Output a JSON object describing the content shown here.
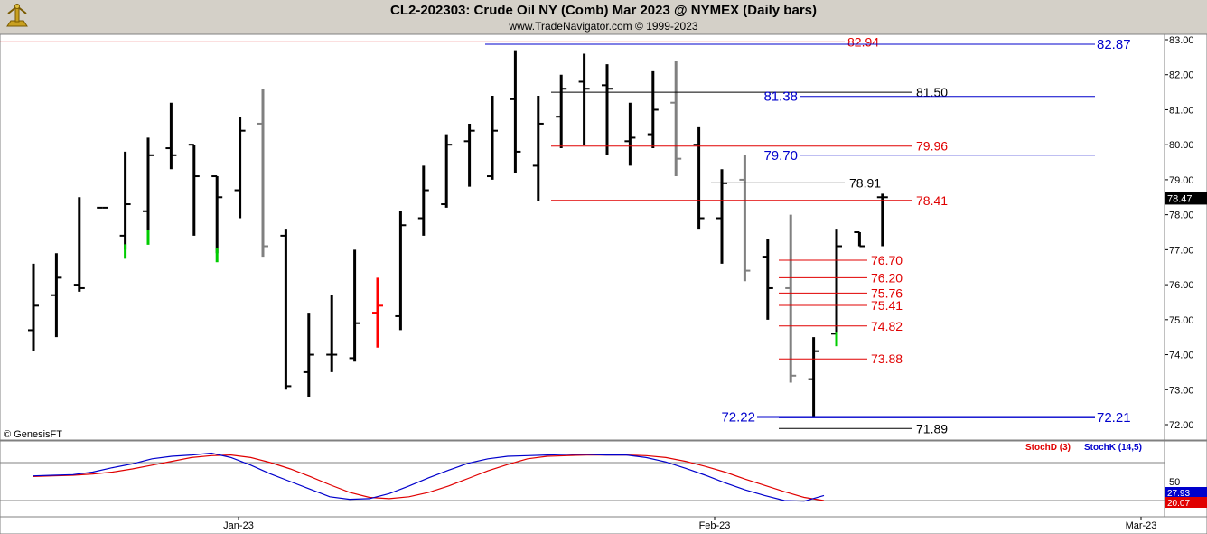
{
  "header": {
    "title": "CL2-202303:  Crude Oil NY (Comb) Mar 2023 @ NYMEX  (Daily bars)",
    "subtitle": "www.TradeNavigator.com © 1999-2023"
  },
  "colors": {
    "up": "#000000",
    "down_gray": "#808080",
    "green_tick": "#00cc00",
    "red_bar": "#ff0000",
    "red_line": "#e00000",
    "blue_line": "#0000cc",
    "stoch_d": "#e00000",
    "stoch_k": "#0000cc"
  },
  "chart_data": [
    {
      "type": "ohlc",
      "watermark": "© GenesisFT",
      "ylim": [
        71.6,
        83.3
      ],
      "y_ticks": [
        "83.00",
        "82.00",
        "81.00",
        "80.00",
        "79.00",
        "78.00",
        "77.00",
        "76.00",
        "75.00",
        "74.00",
        "73.00",
        "72.00"
      ],
      "last_price": "78.47",
      "bars": [
        {
          "o": 74.7,
          "h": 76.6,
          "l": 74.1,
          "c": 75.4,
          "color": "up"
        },
        {
          "o": 75.7,
          "h": 76.9,
          "l": 74.5,
          "c": 76.2,
          "color": "up"
        },
        {
          "o": 76.0,
          "h": 78.5,
          "l": 75.8,
          "c": 75.9,
          "color": "up"
        },
        {
          "o": 78.2,
          "h": 78.2,
          "l": 78.2,
          "c": 78.2,
          "color": "up"
        },
        {
          "o": 77.4,
          "h": 79.8,
          "l": 77.0,
          "c": 78.3,
          "color": "up"
        },
        {
          "o": 78.1,
          "h": 80.2,
          "l": 77.4,
          "c": 79.7,
          "color": "up"
        },
        {
          "o": 79.9,
          "h": 81.2,
          "l": 79.3,
          "c": 79.7,
          "color": "up"
        },
        {
          "o": 80.0,
          "h": 80.0,
          "l": 77.4,
          "c": 79.1,
          "color": "up"
        },
        {
          "o": 79.1,
          "h": 79.1,
          "l": 76.9,
          "c": 78.5,
          "color": "up"
        },
        {
          "o": 78.7,
          "h": 80.8,
          "l": 77.9,
          "c": 80.4,
          "color": "up"
        },
        {
          "o": 80.6,
          "h": 81.6,
          "l": 76.8,
          "c": 77.1,
          "color": "gray"
        },
        {
          "o": 77.4,
          "h": 77.6,
          "l": 73.0,
          "c": 73.1,
          "color": "up"
        },
        {
          "o": 73.5,
          "h": 75.2,
          "l": 72.8,
          "c": 74.0,
          "color": "up"
        },
        {
          "o": 74.0,
          "h": 75.7,
          "l": 73.5,
          "c": 74.0,
          "color": "up"
        },
        {
          "o": 73.9,
          "h": 77.0,
          "l": 73.8,
          "c": 74.9,
          "color": "up"
        },
        {
          "o": 75.2,
          "h": 76.2,
          "l": 74.2,
          "c": 75.4,
          "color": "red"
        },
        {
          "o": 75.1,
          "h": 78.1,
          "l": 74.7,
          "c": 77.7,
          "color": "up"
        },
        {
          "o": 77.9,
          "h": 79.4,
          "l": 77.4,
          "c": 78.7,
          "color": "up"
        },
        {
          "o": 78.3,
          "h": 80.3,
          "l": 78.2,
          "c": 80.0,
          "color": "up"
        },
        {
          "o": 80.1,
          "h": 80.6,
          "l": 78.8,
          "c": 80.4,
          "color": "up"
        },
        {
          "o": 79.1,
          "h": 81.4,
          "l": 79.0,
          "c": 80.4,
          "color": "up"
        },
        {
          "o": 81.3,
          "h": 82.7,
          "l": 79.2,
          "c": 79.8,
          "color": "up"
        },
        {
          "o": 79.4,
          "h": 81.4,
          "l": 78.4,
          "c": 80.6,
          "color": "up"
        },
        {
          "o": 80.8,
          "h": 82.0,
          "l": 79.9,
          "c": 81.6,
          "color": "up"
        },
        {
          "o": 81.8,
          "h": 82.6,
          "l": 80.0,
          "c": 81.6,
          "color": "up"
        },
        {
          "o": 81.7,
          "h": 82.3,
          "l": 79.7,
          "c": 81.6,
          "color": "up"
        },
        {
          "o": 80.1,
          "h": 81.2,
          "l": 79.4,
          "c": 80.2,
          "color": "up"
        },
        {
          "o": 80.3,
          "h": 82.1,
          "l": 79.9,
          "c": 81.0,
          "color": "up"
        },
        {
          "o": 81.2,
          "h": 82.4,
          "l": 79.1,
          "c": 79.6,
          "color": "gray"
        },
        {
          "o": 80.0,
          "h": 80.5,
          "l": 77.6,
          "c": 77.9,
          "color": "up"
        },
        {
          "o": 77.9,
          "h": 79.3,
          "l": 76.6,
          "c": 78.9,
          "color": "up"
        },
        {
          "o": 79.0,
          "h": 79.7,
          "l": 76.1,
          "c": 76.4,
          "color": "gray"
        },
        {
          "o": 76.8,
          "h": 77.3,
          "l": 75.0,
          "c": 75.9,
          "color": "up"
        },
        {
          "o": 75.9,
          "h": 78.0,
          "l": 73.2,
          "c": 73.4,
          "color": "gray"
        },
        {
          "o": 73.3,
          "h": 74.5,
          "l": 72.2,
          "c": 74.1,
          "color": "up"
        },
        {
          "o": 74.6,
          "h": 77.6,
          "l": 74.5,
          "c": 77.1,
          "color": "up"
        },
        {
          "o": 77.5,
          "h": 77.5,
          "l": 77.1,
          "c": 77.1,
          "color": "up"
        },
        {
          "o": 78.5,
          "h": 78.6,
          "l": 77.1,
          "c": 78.5,
          "color": "up"
        }
      ],
      "green_ticks": [
        4,
        5,
        8,
        35
      ],
      "levels": [
        {
          "value": 82.94,
          "label": "82.94",
          "color": "red",
          "side": "right"
        },
        {
          "value": 82.87,
          "label": "82.87",
          "color": "blue",
          "side": "far"
        },
        {
          "value": 81.5,
          "label": "81.50",
          "color": "black",
          "side": "right"
        },
        {
          "value": 81.38,
          "label": "81.38",
          "color": "blue",
          "side": "left"
        },
        {
          "value": 79.96,
          "label": "79.96",
          "color": "red",
          "side": "right"
        },
        {
          "value": 79.7,
          "label": "79.70",
          "color": "blue",
          "side": "left"
        },
        {
          "value": 78.91,
          "label": "78.91",
          "color": "black",
          "side": "right"
        },
        {
          "value": 78.41,
          "label": "78.41",
          "color": "red",
          "side": "right"
        },
        {
          "value": 76.7,
          "label": "76.70",
          "color": "red",
          "side": "right"
        },
        {
          "value": 76.2,
          "label": "76.20",
          "color": "red",
          "side": "right"
        },
        {
          "value": 75.76,
          "label": "75.76",
          "color": "red",
          "side": "right"
        },
        {
          "value": 75.41,
          "label": "75.41",
          "color": "red",
          "side": "right"
        },
        {
          "value": 74.82,
          "label": "74.82",
          "color": "red",
          "side": "right"
        },
        {
          "value": 73.88,
          "label": "73.88",
          "color": "red",
          "side": "right"
        },
        {
          "value": 72.22,
          "label": "72.22",
          "color": "blue",
          "side": "left"
        },
        {
          "value": 72.21,
          "label": "72.21",
          "color": "blue",
          "side": "far"
        },
        {
          "value": 71.89,
          "label": "71.89",
          "color": "black",
          "side": "right"
        }
      ]
    },
    {
      "type": "line",
      "ylim": [
        0,
        100
      ],
      "y_ticks": [
        "50"
      ],
      "legend": [
        {
          "name": "StochD (3)",
          "color": "#e00000"
        },
        {
          "name": "StochK (14,5)",
          "color": "#0000cc"
        }
      ],
      "last_k": "27.93",
      "last_d": "20.07",
      "series": [
        {
          "name": "StochD (3)",
          "values": [
            58,
            59,
            60,
            62,
            65,
            70,
            76,
            82,
            88,
            91,
            92,
            88,
            80,
            70,
            58,
            45,
            33,
            25,
            23,
            26,
            33,
            43,
            55,
            67,
            77,
            86,
            90,
            91,
            92,
            92,
            92,
            91,
            88,
            82,
            74,
            65,
            54,
            44,
            34,
            25,
            20
          ]
        },
        {
          "name": "StochK (14,5)",
          "values": [
            59,
            60,
            61,
            65,
            72,
            78,
            86,
            90,
            92,
            95,
            88,
            76,
            62,
            50,
            38,
            26,
            22,
            23,
            31,
            43,
            56,
            68,
            79,
            86,
            90,
            91,
            92,
            93,
            93,
            92,
            92,
            88,
            81,
            71,
            60,
            48,
            37,
            28,
            20,
            19,
            28
          ]
        }
      ]
    }
  ],
  "x_axis": {
    "ticks": [
      "Jan-23",
      "Feb-23",
      "Mar-23"
    ]
  }
}
